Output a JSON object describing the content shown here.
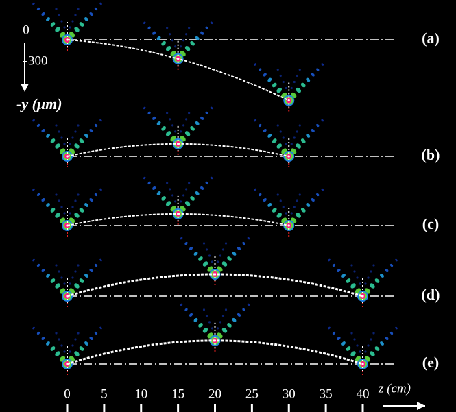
{
  "chart_data": {
    "type": "airy-trajectory",
    "xlabel": "z (cm)",
    "ylabel": "-y (μm)",
    "xlim": [
      0,
      40
    ],
    "xticks": [
      0,
      5,
      10,
      15,
      20,
      25,
      30,
      35,
      40
    ],
    "yticks": [
      0,
      300
    ],
    "panels": [
      {
        "label": "(a)",
        "z": [
          0,
          15,
          30
        ],
        "y": [
          0,
          260,
          830
        ]
      },
      {
        "label": "(b)",
        "z": [
          0,
          15,
          30
        ],
        "y": [
          0,
          -170,
          0
        ]
      },
      {
        "label": "(c)",
        "z": [
          0,
          15,
          30
        ],
        "y": [
          0,
          -160,
          0
        ]
      },
      {
        "label": "(d)",
        "z": [
          0,
          20,
          40
        ],
        "y": [
          0,
          -300,
          0
        ]
      },
      {
        "label": "(e)",
        "z": [
          0,
          20,
          40
        ],
        "y": [
          0,
          -320,
          0
        ]
      }
    ]
  }
}
